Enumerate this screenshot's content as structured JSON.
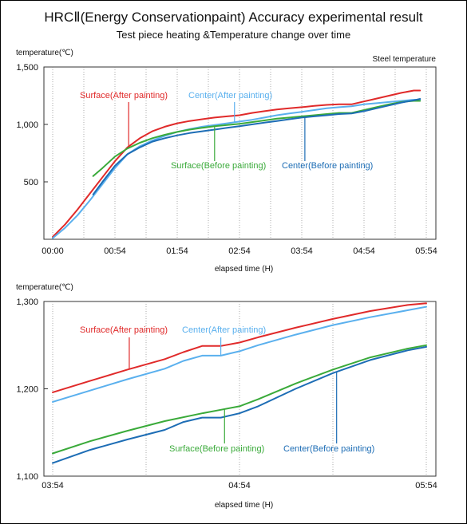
{
  "title": "HRCⅡ(Energy Conservationpaint)  Accuracy experimental result",
  "subtitle": "Test piece heating &Temperature change over time",
  "colors": {
    "surface_after": "#e02a2a",
    "center_after": "#5ab0ee",
    "surface_before": "#3aaa3a",
    "center_before": "#1d6db5"
  },
  "chart_data": [
    {
      "type": "line",
      "ylabel": "temperature(℃)",
      "xlabel": "elapsed time (H)",
      "note": "Steel temperature",
      "x_ticks": [
        "00:00",
        "00:54",
        "01:54",
        "02:54",
        "03:54",
        "04:54",
        "05:54"
      ],
      "y_ticks": [
        500,
        1000,
        1500
      ],
      "y_tick_labels": [
        "500",
        "1,000",
        "1,500"
      ],
      "ylim": [
        0,
        1500
      ],
      "xlim_hours": [
        0,
        6
      ],
      "grid": "vertical dotted",
      "series": [
        {
          "name": "Surface(After painting)",
          "color_key": "surface_after",
          "x": [
            0.0,
            0.2,
            0.4,
            0.6,
            0.8,
            1.0,
            1.2,
            1.4,
            1.6,
            1.8,
            2.0,
            2.2,
            2.4,
            2.6,
            2.8,
            3.0,
            3.2,
            3.4,
            3.6,
            3.8,
            4.0,
            4.2,
            4.4,
            4.6,
            4.8,
            5.0,
            5.2,
            5.4,
            5.6,
            5.8,
            5.9
          ],
          "y": [
            20,
            130,
            260,
            400,
            540,
            680,
            800,
            880,
            940,
            980,
            1010,
            1030,
            1045,
            1060,
            1070,
            1080,
            1100,
            1115,
            1130,
            1140,
            1150,
            1162,
            1170,
            1175,
            1175,
            1200,
            1225,
            1250,
            1275,
            1295,
            1295
          ]
        },
        {
          "name": "Center(After painting)",
          "color_key": "center_after",
          "x": [
            0.0,
            0.2,
            0.4,
            0.6,
            0.8,
            1.0,
            1.2,
            1.4,
            1.6,
            1.8,
            2.0,
            2.2,
            2.4,
            2.6,
            2.8,
            3.0,
            3.2,
            3.4,
            3.6,
            3.8,
            4.0,
            4.2,
            4.4,
            4.6,
            4.8,
            5.0,
            5.2,
            5.4,
            5.6,
            5.8,
            5.9
          ],
          "y": [
            10,
            100,
            210,
            340,
            480,
            620,
            740,
            810,
            860,
            900,
            935,
            960,
            980,
            995,
            1010,
            1025,
            1040,
            1060,
            1080,
            1095,
            1110,
            1125,
            1140,
            1150,
            1158,
            1175,
            1185,
            1195,
            1205,
            1215,
            1215
          ]
        },
        {
          "name": "Surface(Before painting)",
          "color_key": "surface_before",
          "x": [
            0.65,
            0.8,
            1.0,
            1.2,
            1.4,
            1.6,
            1.8,
            2.0,
            2.2,
            2.4,
            2.6,
            2.8,
            3.0,
            3.2,
            3.4,
            3.6,
            3.8,
            4.0,
            4.2,
            4.4,
            4.6,
            4.8,
            5.0,
            5.2,
            5.4,
            5.6,
            5.8,
            5.9
          ],
          "y": [
            550,
            620,
            720,
            790,
            840,
            880,
            910,
            935,
            955,
            970,
            985,
            995,
            1005,
            1020,
            1035,
            1050,
            1060,
            1070,
            1080,
            1090,
            1100,
            1100,
            1125,
            1150,
            1175,
            1195,
            1205,
            1205
          ]
        },
        {
          "name": "Center(Before painting)",
          "color_key": "center_before",
          "x": [
            0.65,
            0.8,
            1.0,
            1.2,
            1.4,
            1.6,
            1.8,
            2.0,
            2.2,
            2.4,
            2.6,
            2.8,
            3.0,
            3.2,
            3.4,
            3.6,
            3.8,
            4.0,
            4.2,
            4.4,
            4.6,
            4.8,
            5.0,
            5.2,
            5.4,
            5.6,
            5.8,
            5.9
          ],
          "y": [
            390,
            500,
            640,
            740,
            800,
            850,
            880,
            905,
            925,
            940,
            955,
            970,
            985,
            1000,
            1015,
            1030,
            1045,
            1060,
            1070,
            1080,
            1090,
            1095,
            1115,
            1140,
            1165,
            1190,
            1210,
            1222
          ]
        }
      ],
      "annotations": [
        {
          "text": "Surface(After painting)",
          "color_key": "surface_after"
        },
        {
          "text": "Center(After painting)",
          "color_key": "center_after"
        },
        {
          "text": "Surface(Before painting)",
          "color_key": "surface_before"
        },
        {
          "text": "Center(Before painting)",
          "color_key": "center_before"
        }
      ]
    },
    {
      "type": "line",
      "ylabel": "temperature(℃)",
      "xlabel": "elapsed time (H)",
      "x_ticks": [
        "03:54",
        "04:54",
        "05:54"
      ],
      "y_ticks": [
        1100,
        1200,
        1300
      ],
      "y_tick_labels": [
        "1,100",
        "1,200",
        "1,300"
      ],
      "ylim": [
        1100,
        1300
      ],
      "xlim_hours": [
        3.9,
        5.9
      ],
      "grid": "vertical dotted",
      "series": [
        {
          "name": "Surface(After painting)",
          "color_key": "surface_after",
          "x": [
            3.9,
            4.1,
            4.3,
            4.5,
            4.6,
            4.7,
            4.8,
            4.9,
            5.0,
            5.2,
            5.4,
            5.6,
            5.8,
            5.9
          ],
          "y": [
            1196,
            1209,
            1222,
            1234,
            1242,
            1249,
            1249,
            1253,
            1259,
            1270,
            1280,
            1289,
            1296,
            1298
          ]
        },
        {
          "name": "Center(After painting)",
          "color_key": "center_after",
          "x": [
            3.9,
            4.1,
            4.3,
            4.5,
            4.6,
            4.7,
            4.8,
            4.9,
            5.0,
            5.2,
            5.4,
            5.6,
            5.8,
            5.9
          ],
          "y": [
            1185,
            1198,
            1211,
            1223,
            1232,
            1238,
            1238,
            1243,
            1250,
            1262,
            1273,
            1282,
            1290,
            1294
          ]
        },
        {
          "name": "Surface(Before painting)",
          "color_key": "surface_before",
          "x": [
            3.9,
            4.1,
            4.3,
            4.5,
            4.7,
            4.8,
            4.9,
            5.0,
            5.2,
            5.4,
            5.6,
            5.8,
            5.9
          ],
          "y": [
            1126,
            1140,
            1152,
            1163,
            1172,
            1176,
            1180,
            1188,
            1206,
            1222,
            1236,
            1246,
            1250
          ]
        },
        {
          "name": "Center(Before painting)",
          "color_key": "center_before",
          "x": [
            3.9,
            4.1,
            4.3,
            4.5,
            4.6,
            4.7,
            4.8,
            4.9,
            5.0,
            5.2,
            5.4,
            5.6,
            5.8,
            5.9
          ],
          "y": [
            1115,
            1130,
            1142,
            1153,
            1162,
            1167,
            1167,
            1172,
            1180,
            1200,
            1218,
            1233,
            1244,
            1248
          ]
        }
      ],
      "annotations": [
        {
          "text": "Surface(After painting)",
          "color_key": "surface_after"
        },
        {
          "text": "Center(After painting)",
          "color_key": "center_after"
        },
        {
          "text": "Surface(Before painting)",
          "color_key": "surface_before"
        },
        {
          "text": "Center(Before painting)",
          "color_key": "center_before"
        }
      ]
    }
  ]
}
